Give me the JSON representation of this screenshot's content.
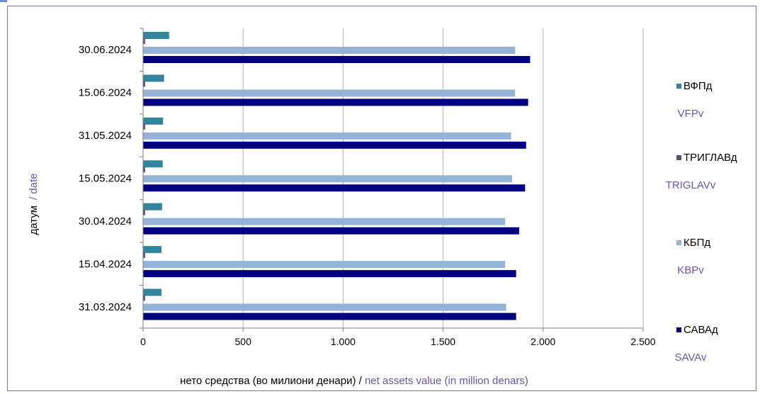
{
  "chart_data": {
    "type": "bar",
    "orientation": "horizontal",
    "categories": [
      "30.06.2024",
      "15.06.2024",
      "31.05.2024",
      "15.05.2024",
      "30.04.2024",
      "15.04.2024",
      "31.03.2024"
    ],
    "series": [
      {
        "name": "ВФПд",
        "name_en": "VFPv",
        "color": "#31859c",
        "values": [
          130,
          105,
          100,
          98,
          95,
          92,
          92
        ]
      },
      {
        "name": "ТРИГЛАВд",
        "name_en": "TRIGLAVv",
        "color": "#604a7b",
        "values": [
          10,
          10,
          10,
          10,
          10,
          10,
          10
        ]
      },
      {
        "name": "КБПд",
        "name_en": "KBPv",
        "color": "#95b3d7",
        "values": [
          1860,
          1860,
          1840,
          1845,
          1810,
          1810,
          1815
        ]
      },
      {
        "name": "САВАд",
        "name_en": "SAVAv",
        "color": "#000080",
        "values": [
          1935,
          1925,
          1915,
          1910,
          1880,
          1865,
          1865
        ]
      }
    ],
    "xlim": [
      0,
      2500
    ],
    "xticks": [
      0,
      500,
      1000,
      1500,
      2000,
      2500
    ],
    "xtick_labels": [
      "0",
      "500",
      "1.000",
      "1.500",
      "2.000",
      "2.500"
    ],
    "xlabel": "нето средства (во милиони денари) / ",
    "xlabel_en": "net assets value (in million denars)",
    "ylabel": "датум",
    "ylabel_en": "/ date",
    "grid": "vertical",
    "legend_position": "right"
  }
}
